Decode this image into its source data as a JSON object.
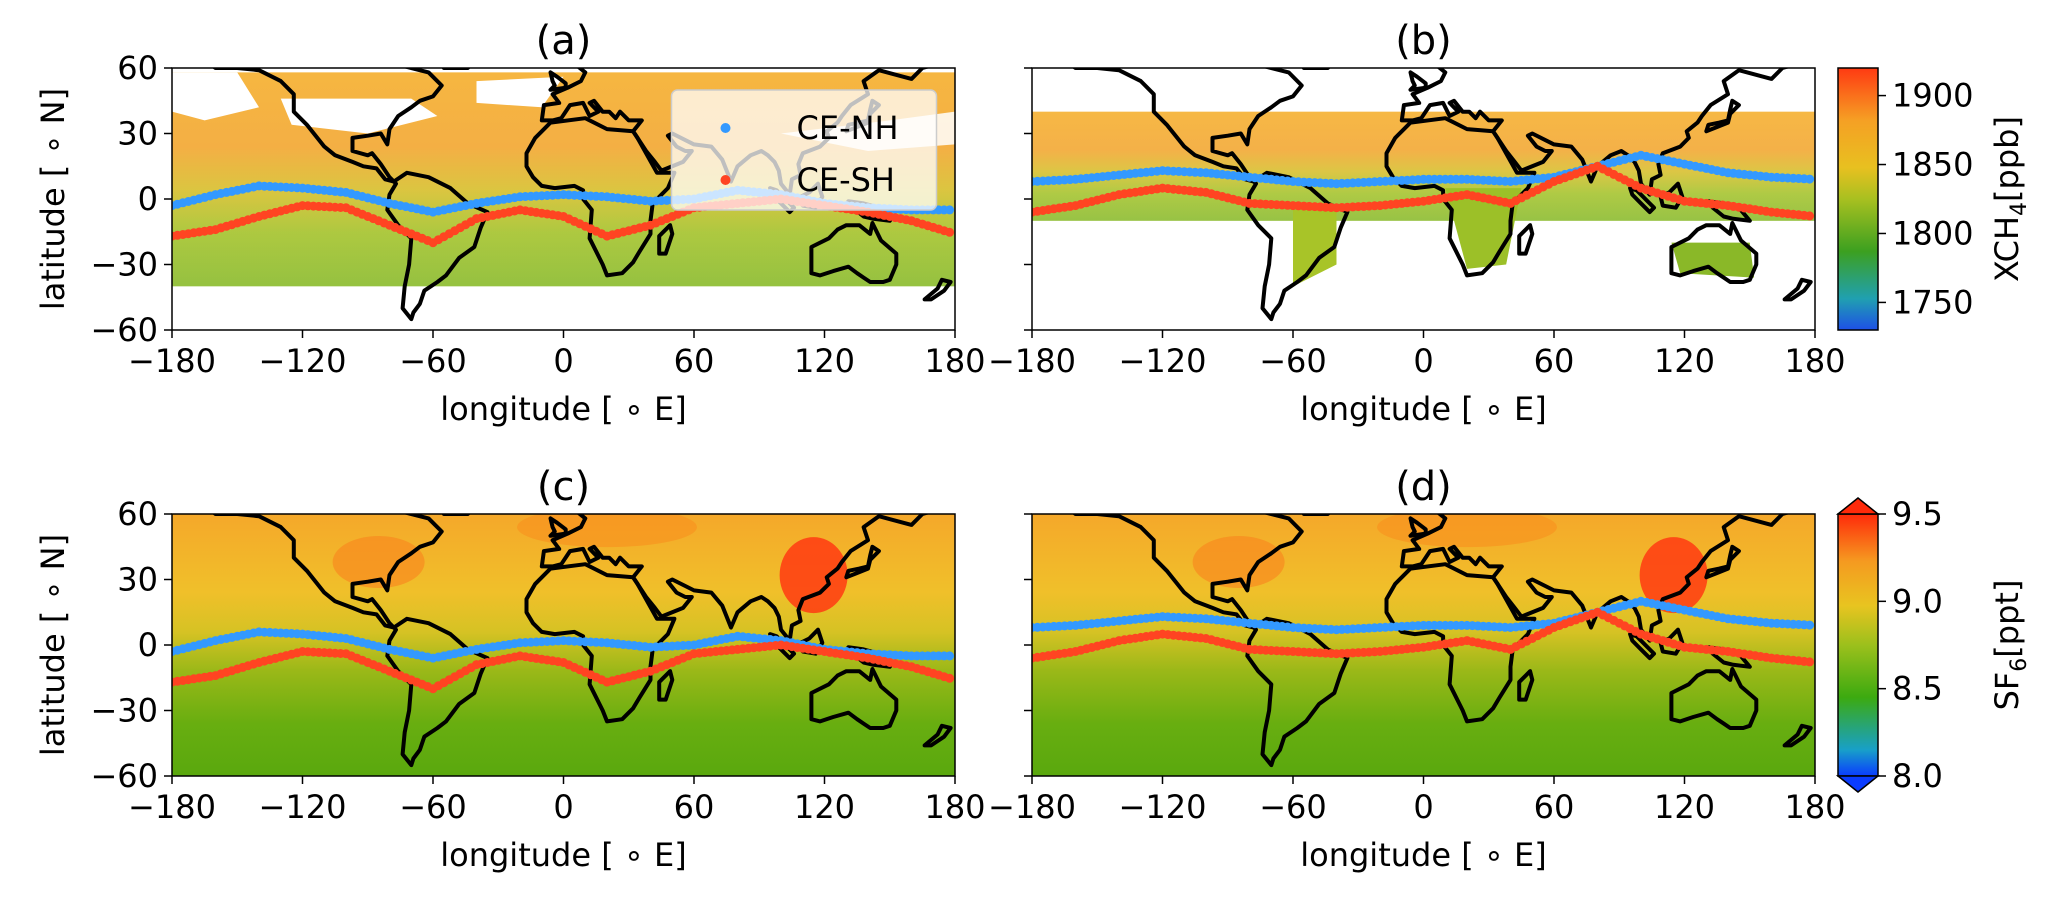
{
  "colors": {
    "ce_nh": "#3399ff",
    "ce_sh": "#ff4422",
    "coast": "#000000",
    "xch4_low": "#2244dd",
    "xch4_high": "#ff3311",
    "sf6_low": "#0a3bff",
    "sf6_high": "#ff2a0a"
  },
  "chart_data": [
    {
      "panel": "a",
      "type": "heatmap",
      "title": "(a)",
      "xlabel": "longitude [$^\\circ$E]",
      "ylabel": "latitude [$^\\circ$N]",
      "xlabel_display": "longitude [ ∘ E]",
      "ylabel_display": "latitude [ ∘ N]",
      "xlim": [
        -180,
        180
      ],
      "ylim": [
        -60,
        60
      ],
      "xticks": [
        -180,
        -120,
        -60,
        0,
        60,
        120,
        180
      ],
      "yticks": [
        60,
        30,
        0,
        -30,
        -60
      ],
      "xtick_labels": [
        "−180",
        "−120",
        "−60",
        "0",
        "60",
        "120",
        "180"
      ],
      "ytick_labels": [
        "60",
        "30",
        "0",
        "−30",
        "−60"
      ],
      "field": "XCH4",
      "colorbar": "xch4",
      "legend": {
        "placement": "top-center",
        "entries": [
          "CE-NH",
          "CE-SH"
        ]
      },
      "series": [
        {
          "name": "CE-NH",
          "color_key": "ce_nh",
          "x": [
            -180,
            -160,
            -140,
            -120,
            -100,
            -80,
            -60,
            -40,
            -20,
            0,
            20,
            40,
            60,
            80,
            100,
            120,
            140,
            160,
            180
          ],
          "y": [
            -3,
            2,
            6,
            5,
            3,
            -2,
            -6,
            -2,
            1,
            2,
            1,
            -1,
            0,
            4,
            2,
            -2,
            -4,
            -5,
            -5
          ]
        },
        {
          "name": "CE-SH",
          "color_key": "ce_sh",
          "x": [
            -180,
            -160,
            -140,
            -120,
            -100,
            -80,
            -60,
            -40,
            -20,
            0,
            20,
            40,
            60,
            80,
            100,
            120,
            140,
            160,
            180
          ],
          "y": [
            -17,
            -14,
            -8,
            -3,
            -4,
            -12,
            -20,
            -9,
            -5,
            -8,
            -17,
            -12,
            -4,
            -2,
            0,
            -3,
            -6,
            -10,
            -16
          ]
        }
      ]
    },
    {
      "panel": "b",
      "type": "heatmap",
      "title": "(b)",
      "xlabel": "longitude [$^\\circ$E]",
      "xlabel_display": "longitude [ ∘ E]",
      "xlim": [
        -180,
        180
      ],
      "ylim": [
        -60,
        60
      ],
      "xticks": [
        -180,
        -120,
        -60,
        0,
        60,
        120,
        180
      ],
      "xtick_labels": [
        "−180",
        "−120",
        "−60",
        "0",
        "60",
        "120",
        "180"
      ],
      "field": "XCH4",
      "colorbar": "xch4",
      "series": [
        {
          "name": "CE-NH",
          "color_key": "ce_nh",
          "x": [
            -180,
            -160,
            -140,
            -120,
            -100,
            -80,
            -60,
            -40,
            -20,
            0,
            20,
            40,
            60,
            80,
            100,
            120,
            140,
            160,
            180
          ],
          "y": [
            8,
            9,
            11,
            13,
            12,
            10,
            8,
            7,
            8,
            9,
            9,
            8,
            10,
            15,
            20,
            16,
            12,
            10,
            9
          ]
        },
        {
          "name": "CE-SH",
          "color_key": "ce_sh",
          "x": [
            -180,
            -160,
            -140,
            -120,
            -100,
            -80,
            -60,
            -40,
            -20,
            0,
            20,
            40,
            60,
            80,
            100,
            120,
            140,
            160,
            180
          ],
          "y": [
            -6,
            -3,
            2,
            5,
            3,
            -2,
            -3,
            -4,
            -3,
            -1,
            2,
            -2,
            8,
            15,
            5,
            -1,
            -3,
            -6,
            -8
          ]
        }
      ]
    },
    {
      "panel": "c",
      "type": "heatmap",
      "title": "(c)",
      "xlabel": "longitude [$^\\circ$E]",
      "ylabel": "latitude [$^\\circ$N]",
      "xlabel_display": "longitude [ ∘ E]",
      "ylabel_display": "latitude [ ∘ N]",
      "xlim": [
        -180,
        180
      ],
      "ylim": [
        -60,
        60
      ],
      "xticks": [
        -180,
        -120,
        -60,
        0,
        60,
        120,
        180
      ],
      "yticks": [
        60,
        30,
        0,
        -30,
        -60
      ],
      "xtick_labels": [
        "−180",
        "−120",
        "−60",
        "0",
        "60",
        "120",
        "180"
      ],
      "ytick_labels": [
        "60",
        "30",
        "0",
        "−30",
        "−60"
      ],
      "field": "SF6",
      "colorbar": "sf6",
      "series": [
        {
          "name": "CE-NH",
          "color_key": "ce_nh",
          "x": [
            -180,
            -160,
            -140,
            -120,
            -100,
            -80,
            -60,
            -40,
            -20,
            0,
            20,
            40,
            60,
            80,
            100,
            120,
            140,
            160,
            180
          ],
          "y": [
            -3,
            2,
            6,
            5,
            3,
            -2,
            -6,
            -2,
            1,
            2,
            1,
            -1,
            0,
            4,
            2,
            -2,
            -4,
            -5,
            -5
          ]
        },
        {
          "name": "CE-SH",
          "color_key": "ce_sh",
          "x": [
            -180,
            -160,
            -140,
            -120,
            -100,
            -80,
            -60,
            -40,
            -20,
            0,
            20,
            40,
            60,
            80,
            100,
            120,
            140,
            160,
            180
          ],
          "y": [
            -17,
            -14,
            -8,
            -3,
            -4,
            -12,
            -20,
            -9,
            -5,
            -8,
            -17,
            -12,
            -4,
            -2,
            0,
            -3,
            -6,
            -10,
            -16
          ]
        }
      ]
    },
    {
      "panel": "d",
      "type": "heatmap",
      "title": "(d)",
      "xlabel": "longitude [$^\\circ$E]",
      "xlabel_display": "longitude [ ∘ E]",
      "xlim": [
        -180,
        180
      ],
      "ylim": [
        -60,
        60
      ],
      "xticks": [
        -180,
        -120,
        -60,
        0,
        60,
        120,
        180
      ],
      "xtick_labels": [
        "−180",
        "−120",
        "−60",
        "0",
        "60",
        "120",
        "180"
      ],
      "field": "SF6",
      "colorbar": "sf6",
      "series": [
        {
          "name": "CE-NH",
          "color_key": "ce_nh",
          "x": [
            -180,
            -160,
            -140,
            -120,
            -100,
            -80,
            -60,
            -40,
            -20,
            0,
            20,
            40,
            60,
            80,
            100,
            120,
            140,
            160,
            180
          ],
          "y": [
            8,
            9,
            11,
            13,
            12,
            10,
            8,
            7,
            8,
            9,
            9,
            8,
            10,
            15,
            20,
            16,
            12,
            10,
            9
          ]
        },
        {
          "name": "CE-SH",
          "color_key": "ce_sh",
          "x": [
            -180,
            -160,
            -140,
            -120,
            -100,
            -80,
            -60,
            -40,
            -20,
            0,
            20,
            40,
            60,
            80,
            100,
            120,
            140,
            160,
            180
          ],
          "y": [
            -6,
            -3,
            2,
            5,
            3,
            -2,
            -3,
            -4,
            -3,
            -1,
            2,
            -2,
            8,
            15,
            5,
            -1,
            -3,
            -6,
            -8
          ]
        }
      ]
    }
  ],
  "colorbars": {
    "xch4": {
      "label": "XCH$_4$[ppb]",
      "label_main": "XCH",
      "label_sub": "4",
      "label_unit": "[ppb]",
      "range": [
        1730,
        1920
      ],
      "ticks": [
        1750,
        1800,
        1850,
        1900
      ],
      "tick_labels": [
        "1750",
        "1800",
        "1850",
        "1900"
      ],
      "extend": "neither"
    },
    "sf6": {
      "label": "SF$_6$[ppt]",
      "label_main": "SF",
      "label_sub": "6",
      "label_unit": "[ppt]",
      "range": [
        8.0,
        9.5
      ],
      "ticks": [
        8.0,
        8.5,
        9.0,
        9.5
      ],
      "tick_labels": [
        "8.0",
        "8.5",
        "9.0",
        "9.5"
      ],
      "extend": "both"
    }
  }
}
